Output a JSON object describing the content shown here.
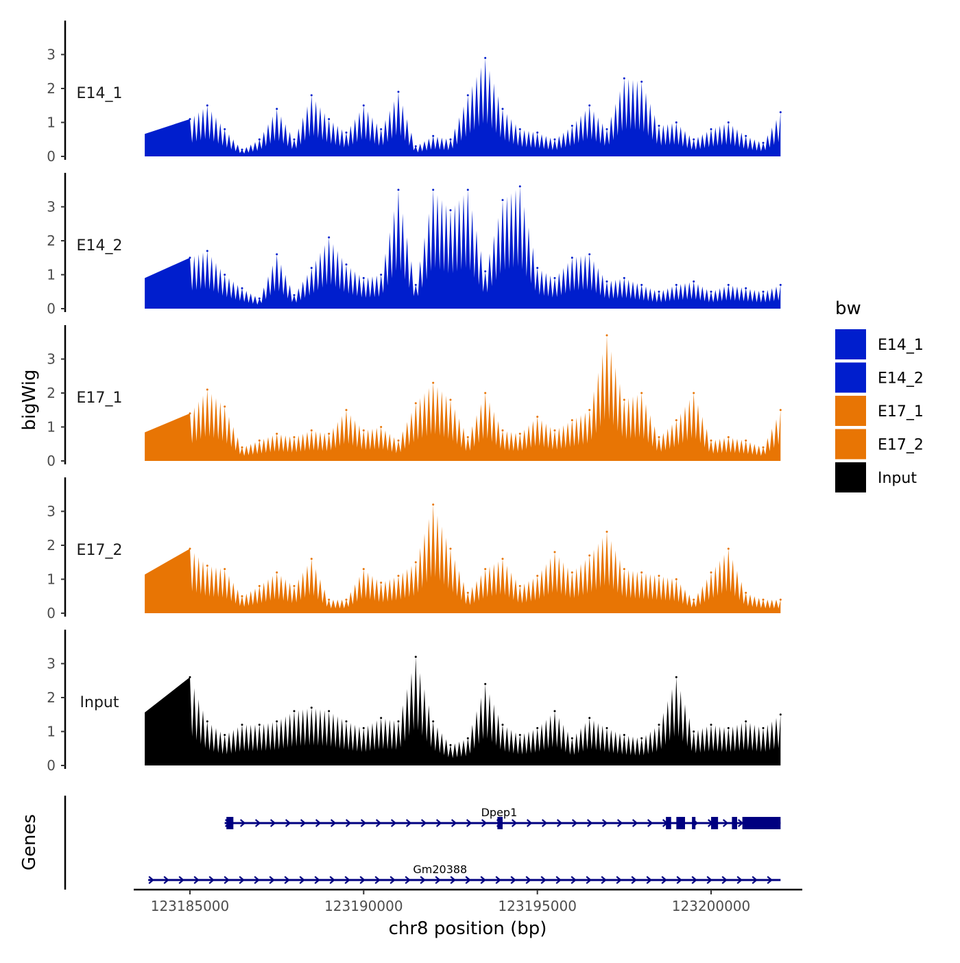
{
  "chart_data": {
    "type": "area",
    "title": "",
    "xlabel": "chr8 position (bp)",
    "ylabel": "bigWig",
    "genes_label": "Genes",
    "xlim": [
      123184000,
      123202800
    ],
    "ylim": [
      0,
      3.9
    ],
    "x_ticks": [
      {
        "value": 123185000,
        "label": "123185000"
      },
      {
        "value": 123190000,
        "label": "123190000"
      },
      {
        "value": 123195000,
        "label": "123195000"
      },
      {
        "value": 123200000,
        "label": "123200000"
      }
    ],
    "y_ticks": [
      {
        "value": 0,
        "label": "0"
      },
      {
        "value": 1,
        "label": "1"
      },
      {
        "value": 2,
        "label": "2"
      },
      {
        "value": 3,
        "label": "3"
      }
    ],
    "legend": {
      "title": "bw",
      "position": "right",
      "entries": [
        {
          "label": "E14_1",
          "color": "#001ECD"
        },
        {
          "label": "E14_2",
          "color": "#001ECD"
        },
        {
          "label": "E17_1",
          "color": "#E87504"
        },
        {
          "label": "E17_2",
          "color": "#E87504"
        },
        {
          "label": "Input",
          "color": "#000000"
        }
      ]
    },
    "series": [
      {
        "name": "E14_1",
        "color": "#001ECD",
        "x": [
          123185000,
          123185500,
          123186000,
          123186500,
          123187000,
          123187500,
          123188000,
          123188500,
          123189000,
          123189500,
          123190000,
          123190500,
          123191000,
          123191500,
          123192000,
          123192500,
          123193000,
          123193500,
          123194000,
          123194500,
          123195000,
          123195500,
          123196000,
          123196500,
          123197000,
          123197500,
          123198000,
          123198500,
          123199000,
          123199500,
          123200000,
          123200500,
          123201000,
          123201500,
          123202000
        ],
        "values": [
          1.1,
          1.5,
          0.8,
          0.2,
          0.5,
          1.4,
          0.5,
          1.8,
          1.1,
          0.7,
          1.5,
          0.8,
          1.9,
          0.3,
          0.6,
          0.5,
          1.8,
          2.9,
          1.4,
          0.8,
          0.7,
          0.5,
          0.9,
          1.5,
          0.8,
          2.3,
          2.2,
          0.9,
          1.0,
          0.5,
          0.8,
          1.0,
          0.6,
          0.4,
          1.3
        ]
      },
      {
        "name": "E14_2",
        "color": "#001ECD",
        "x": [
          123185000,
          123185500,
          123186000,
          123186500,
          123187000,
          123187500,
          123188000,
          123188500,
          123189000,
          123189500,
          123190000,
          123190500,
          123191000,
          123191500,
          123192000,
          123192500,
          123193000,
          123193500,
          123194000,
          123194500,
          123195000,
          123195500,
          123196000,
          123196500,
          123197000,
          123197500,
          123198000,
          123198500,
          123199000,
          123199500,
          123200000,
          123200500,
          123201000,
          123201500,
          123202000
        ],
        "values": [
          1.5,
          1.7,
          1.0,
          0.6,
          0.3,
          1.6,
          0.4,
          1.2,
          2.1,
          1.3,
          0.9,
          1.0,
          3.5,
          0.7,
          3.5,
          2.9,
          3.5,
          1.1,
          3.2,
          3.6,
          1.2,
          0.9,
          1.5,
          1.6,
          0.8,
          0.9,
          0.7,
          0.5,
          0.7,
          0.8,
          0.5,
          0.7,
          0.6,
          0.5,
          0.7
        ]
      },
      {
        "name": "E17_1",
        "color": "#E87504",
        "x": [
          123185000,
          123185500,
          123186000,
          123186500,
          123187000,
          123187500,
          123188000,
          123188500,
          123189000,
          123189500,
          123190000,
          123190500,
          123191000,
          123191500,
          123192000,
          123192500,
          123193000,
          123193500,
          123194000,
          123194500,
          123195000,
          123195500,
          123196000,
          123196500,
          123197000,
          123197500,
          123198000,
          123198500,
          123199000,
          123199500,
          123200000,
          123200500,
          123201000,
          123201500,
          123202000
        ],
        "values": [
          1.4,
          2.1,
          1.6,
          0.4,
          0.6,
          0.8,
          0.7,
          0.9,
          0.8,
          1.5,
          0.9,
          1.0,
          0.6,
          1.7,
          2.3,
          1.8,
          0.7,
          2.0,
          0.9,
          0.8,
          1.3,
          0.9,
          1.2,
          1.5,
          3.7,
          1.8,
          2.0,
          0.7,
          1.2,
          2.0,
          0.6,
          0.7,
          0.6,
          0.4,
          1.5
        ]
      },
      {
        "name": "E17_2",
        "color": "#E87504",
        "x": [
          123185000,
          123185500,
          123186000,
          123186500,
          123187000,
          123187500,
          123188000,
          123188500,
          123189000,
          123189500,
          123190000,
          123190500,
          123191000,
          123191500,
          123192000,
          123192500,
          123193000,
          123193500,
          123194000,
          123194500,
          123195000,
          123195500,
          123196000,
          123196500,
          123197000,
          123197500,
          123198000,
          123198500,
          123199000,
          123199500,
          123200000,
          123200500,
          123201000,
          123201500,
          123202000
        ],
        "values": [
          1.9,
          1.4,
          1.3,
          0.5,
          0.8,
          1.2,
          0.8,
          1.6,
          0.4,
          0.4,
          1.3,
          0.9,
          1.1,
          1.5,
          3.2,
          1.9,
          0.6,
          1.3,
          1.6,
          0.8,
          1.1,
          1.8,
          1.2,
          1.7,
          2.4,
          1.3,
          1.2,
          1.1,
          1.0,
          0.4,
          1.2,
          1.9,
          0.6,
          0.4,
          0.4
        ]
      },
      {
        "name": "Input",
        "color": "#000000",
        "x": [
          123185000,
          123185500,
          123186000,
          123186500,
          123187000,
          123187500,
          123188000,
          123188500,
          123189000,
          123189500,
          123190000,
          123190500,
          123191000,
          123191500,
          123192000,
          123192500,
          123193000,
          123193500,
          123194000,
          123194500,
          123195000,
          123195500,
          123196000,
          123196500,
          123197000,
          123197500,
          123198000,
          123198500,
          123199000,
          123199500,
          123200000,
          123200500,
          123201000,
          123201500,
          123202000
        ],
        "values": [
          2.6,
          1.3,
          0.9,
          1.2,
          1.2,
          1.3,
          1.6,
          1.7,
          1.6,
          1.3,
          1.1,
          1.4,
          1.3,
          3.2,
          1.3,
          0.6,
          0.8,
          2.4,
          1.2,
          0.9,
          1.1,
          1.6,
          0.8,
          1.4,
          1.1,
          0.9,
          0.8,
          1.2,
          2.6,
          1.0,
          1.2,
          1.1,
          1.3,
          1.1,
          1.5
        ]
      }
    ],
    "genes": [
      {
        "name": "Dpep1",
        "strand": "+",
        "start": 123186000,
        "end": 123202000,
        "exons": [
          [
            123186050,
            123186250
          ],
          [
            123193850,
            123194000
          ],
          [
            123198700,
            123198850
          ],
          [
            123199000,
            123199250
          ],
          [
            123199450,
            123199550
          ],
          [
            123200000,
            123200200
          ],
          [
            123200600,
            123200750
          ],
          [
            123200900,
            123202000
          ]
        ]
      },
      {
        "name": "Gm20388",
        "strand": "+",
        "start": 123183800,
        "end": 123202000,
        "exons": []
      }
    ]
  }
}
